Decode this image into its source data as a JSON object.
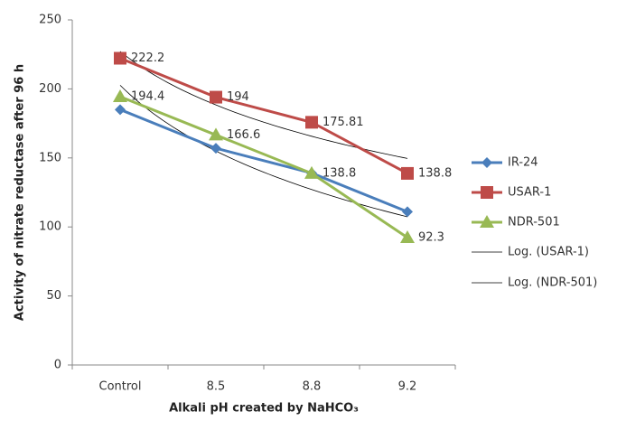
{
  "chart_data": {
    "type": "line",
    "x_label": "Alkali pH created by NaHCO₃",
    "y_label": "Activity of nitrate reductase after 96 h",
    "categories": [
      "Control",
      "8.5",
      "8.8",
      "9.2"
    ],
    "ylim": [
      0,
      250
    ],
    "yticks": [
      0,
      50,
      100,
      150,
      200,
      250
    ],
    "series": [
      {
        "name": "IR-24",
        "color": "#4a7ebb",
        "marker": "diamond",
        "values": [
          185,
          157,
          139,
          111
        ]
      },
      {
        "name": "USAR-1",
        "color": "#be4b48",
        "marker": "square",
        "values": [
          222.2,
          194,
          175.81,
          138.8
        ]
      },
      {
        "name": "NDR-501",
        "color": "#98b954",
        "marker": "triangle",
        "values": [
          194.4,
          166.6,
          138.8,
          92.3
        ]
      }
    ],
    "trendlines": [
      {
        "name": "Log. (USAR-1)",
        "series": 1,
        "kind": "log",
        "color": "#000000"
      },
      {
        "name": "Log. (NDR-501)",
        "series": 2,
        "kind": "log",
        "color": "#000000"
      }
    ],
    "data_labels_series": [
      1,
      2
    ]
  }
}
